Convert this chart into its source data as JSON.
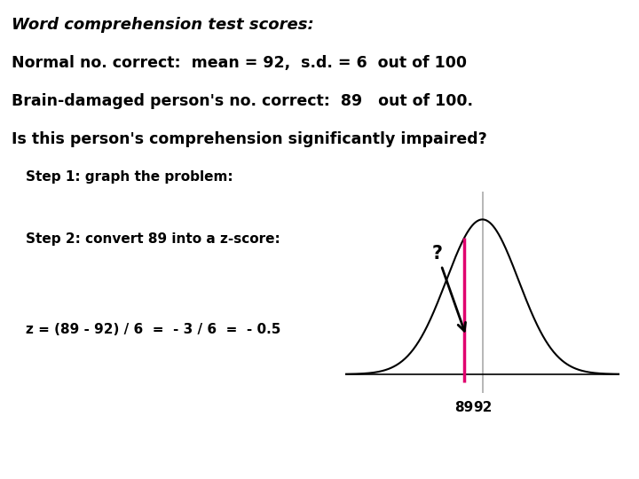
{
  "title_line": "Word comprehension test scores:",
  "line1": "Normal no. correct:  mean = 92,  s.d. = 6  out of 100",
  "line2": "Brain-damaged person's no. correct:  89   out of 100.",
  "line3": "Is this person's comprehension significantly impaired?",
  "step1": "Step 1: graph the problem:",
  "step2": "Step 2: convert 89 into a z-score:",
  "formula": "z = (89 - 92) / 6  =  - 3 / 6  =  - 0.5",
  "mean": 92,
  "sd": 6,
  "value": 89,
  "bg_color": "#ffffff",
  "curve_color": "#000000",
  "vline_mean_color": "#aaaaaa",
  "vline_val_color": "#e0006e",
  "text_color": "#000000",
  "curve_lw": 1.5,
  "vline_lw": 2.2,
  "axis_line_color": "#000000"
}
